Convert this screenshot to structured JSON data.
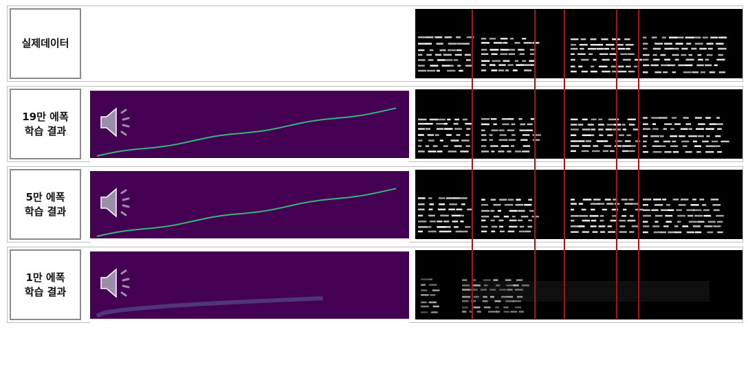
{
  "rows": [
    {
      "label_lines": [
        "실제데이터"
      ]
    },
    {
      "label_lines": [
        "19만 에폭",
        "학습 결과"
      ]
    },
    {
      "label_lines": [
        "5만 에폭",
        "학습 결과"
      ]
    },
    {
      "label_lines": [
        "1만 에폭",
        "학습 결과"
      ]
    }
  ]
}
